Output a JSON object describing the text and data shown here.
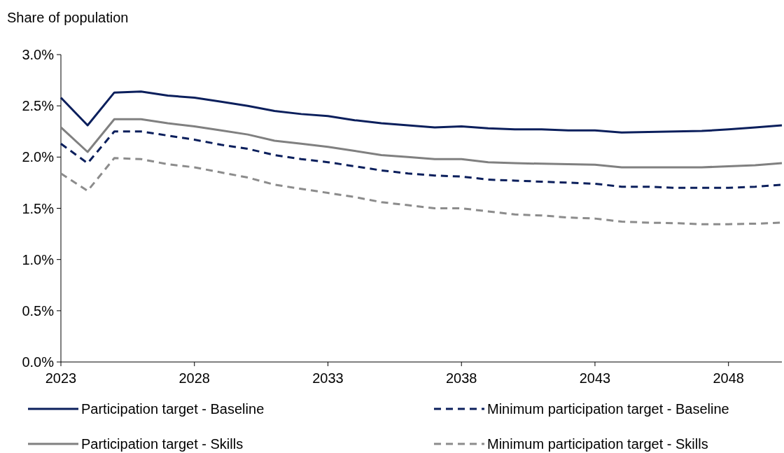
{
  "chart_data": {
    "type": "line",
    "ylabel": "Share of population",
    "x": [
      2023,
      2024,
      2025,
      2026,
      2027,
      2028,
      2029,
      2030,
      2031,
      2032,
      2033,
      2034,
      2035,
      2036,
      2037,
      2038,
      2039,
      2040,
      2041,
      2042,
      2043,
      2044,
      2045,
      2046,
      2047,
      2048,
      2049,
      2050
    ],
    "xlim": [
      2023,
      2050
    ],
    "xticks": [
      2023,
      2028,
      2033,
      2038,
      2043,
      2048
    ],
    "ylim": [
      0,
      3
    ],
    "yticks": [
      {
        "value": 0,
        "label": "0.0%"
      },
      {
        "value": 0.5,
        "label": "0.5%"
      },
      {
        "value": 1,
        "label": "1.0%"
      },
      {
        "value": 1.5,
        "label": "1.5%"
      },
      {
        "value": 2,
        "label": "2.0%"
      },
      {
        "value": 2.5,
        "label": "2.5%"
      },
      {
        "value": 3,
        "label": "3.0%"
      }
    ],
    "grid": false,
    "legend": "bottom",
    "series": [
      {
        "name": "Participation target - Baseline",
        "color": "#0b1f5c",
        "line_style": "solid",
        "values": [
          2.58,
          2.31,
          2.63,
          2.64,
          2.6,
          2.58,
          2.54,
          2.5,
          2.45,
          2.42,
          2.4,
          2.36,
          2.33,
          2.31,
          2.29,
          2.3,
          2.28,
          2.27,
          2.27,
          2.26,
          2.26,
          2.24,
          2.245,
          2.25,
          2.255,
          2.27,
          2.29,
          2.31
        ]
      },
      {
        "name": "Minimum participation target - Baseline",
        "color": "#0b1f5c",
        "line_style": "dashed",
        "values": [
          2.13,
          1.94,
          2.25,
          2.25,
          2.21,
          2.17,
          2.12,
          2.08,
          2.02,
          1.98,
          1.95,
          1.91,
          1.87,
          1.84,
          1.82,
          1.81,
          1.78,
          1.77,
          1.76,
          1.75,
          1.74,
          1.71,
          1.71,
          1.7,
          1.7,
          1.7,
          1.71,
          1.73
        ]
      },
      {
        "name": "Participation target - Skills",
        "color": "#808080",
        "line_style": "solid",
        "values": [
          2.29,
          2.05,
          2.37,
          2.37,
          2.33,
          2.3,
          2.26,
          2.22,
          2.16,
          2.13,
          2.1,
          2.06,
          2.02,
          2,
          1.98,
          1.98,
          1.95,
          1.94,
          1.935,
          1.93,
          1.925,
          1.9,
          1.9,
          1.9,
          1.9,
          1.91,
          1.92,
          1.94
        ]
      },
      {
        "name": "Minimum participation target - Skills",
        "color": "#8c8c8c",
        "line_style": "dashed",
        "values": [
          1.84,
          1.67,
          1.99,
          1.98,
          1.93,
          1.9,
          1.85,
          1.8,
          1.73,
          1.69,
          1.65,
          1.61,
          1.56,
          1.53,
          1.5,
          1.5,
          1.47,
          1.44,
          1.43,
          1.41,
          1.4,
          1.37,
          1.36,
          1.355,
          1.345,
          1.345,
          1.35,
          1.36
        ]
      }
    ]
  }
}
